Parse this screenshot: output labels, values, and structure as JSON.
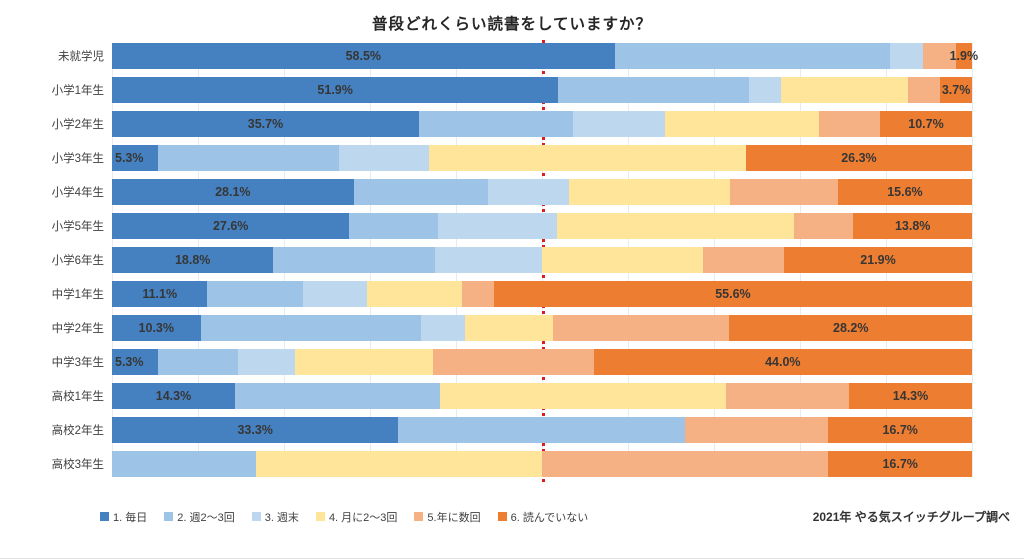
{
  "title": "普段どれくらい読書をしていますか？",
  "source": "2021年 やる気スイッチグループ調べ",
  "palette": {
    "daily": "#4581C1",
    "week2_3": "#9DC3E6",
    "weekend": "#BDD7EE",
    "month2_3": "#FFE599",
    "few_per_year": "#F5B183",
    "not_reading": "#ED7D31",
    "reference_line": "#E01B1B"
  },
  "legend": [
    {
      "label": "1. 毎日",
      "color": "#4581C1"
    },
    {
      "label": "2. 週2〜3回",
      "color": "#9DC3E6"
    },
    {
      "label": "3. 週末",
      "color": "#BDD7EE"
    },
    {
      "label": "4. 月に2〜3回",
      "color": "#FFE599"
    },
    {
      "label": "5.年に数回",
      "color": "#F5B183"
    },
    {
      "label": "6. 読んでいない",
      "color": "#ED7D31"
    }
  ],
  "chart_data": {
    "type": "bar",
    "stacked": true,
    "orientation": "horizontal",
    "x_range": [
      0,
      100
    ],
    "grid": "vertical, every 10%",
    "reference_line": {
      "position_percent": 50,
      "style": "dotted",
      "color": "#E01B1B"
    },
    "categories": [
      "未就学児",
      "小学1年生",
      "小学2年生",
      "小学3年生",
      "小学4年生",
      "小学5年生",
      "小学6年生",
      "中学1年生",
      "中学2年生",
      "中学3年生",
      "高校1年生",
      "高校2年生",
      "高校3年生"
    ],
    "series": [
      {
        "name": "1. 毎日",
        "color": "#4581C1",
        "values": [
          58.5,
          51.9,
          35.7,
          5.3,
          28.1,
          27.6,
          18.8,
          11.1,
          10.3,
          5.3,
          14.3,
          33.3,
          0
        ]
      },
      {
        "name": "2. 週2〜3回",
        "color": "#9DC3E6",
        "values": [
          32.1,
          22.2,
          17.9,
          21.1,
          15.6,
          10.3,
          18.8,
          11.1,
          25.6,
          9.3,
          23.8,
          33.3,
          16.7
        ]
      },
      {
        "name": "3. 週末",
        "color": "#BDD7EE",
        "values": [
          3.8,
          3.7,
          10.7,
          10.5,
          9.4,
          13.8,
          12.5,
          7.4,
          5.1,
          6.7,
          0,
          0,
          0
        ]
      },
      {
        "name": "4. 月に2〜3回",
        "color": "#FFE599",
        "values": [
          0,
          14.8,
          17.9,
          36.8,
          18.8,
          27.6,
          18.8,
          11.1,
          10.3,
          16.0,
          33.3,
          0,
          33.3
        ]
      },
      {
        "name": "5.年に数回",
        "color": "#F5B183",
        "values": [
          3.8,
          3.7,
          7.1,
          0,
          12.5,
          6.9,
          9.4,
          3.7,
          20.5,
          18.7,
          14.3,
          16.7,
          33.3
        ]
      },
      {
        "name": "6. 読んでいない",
        "color": "#ED7D31",
        "values": [
          1.9,
          3.7,
          10.7,
          26.3,
          15.6,
          13.8,
          21.9,
          55.6,
          28.2,
          44.0,
          14.3,
          16.7,
          16.7
        ]
      }
    ],
    "shown_labels": {
      "first": [
        "58.5%",
        "51.9%",
        "35.7%",
        "5.3%",
        "28.1%",
        "27.6%",
        "18.8%",
        "11.1%",
        "10.3%",
        "5.3%",
        "14.3%",
        "33.3%",
        null
      ],
      "last": [
        "1.9%",
        "3.7%",
        "10.7%",
        "26.3%",
        "15.6%",
        "13.8%",
        "21.9%",
        "55.6%",
        "28.2%",
        "44.0%",
        "14.3%",
        "16.7%",
        "16.7%"
      ]
    }
  }
}
